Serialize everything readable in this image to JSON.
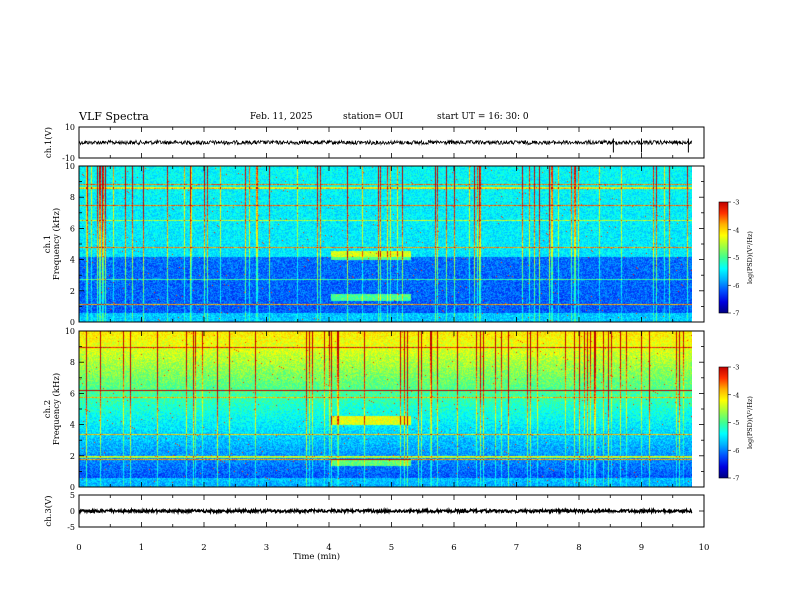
{
  "header": {
    "title": "VLF Spectra",
    "date": "Feb. 11, 2025",
    "station": "station= OUI",
    "start": "start  UT  =   16: 30: 0"
  },
  "colors": {
    "scale": [
      "#000080",
      "#0000e0",
      "#0050ff",
      "#00b0ff",
      "#00ffff",
      "#40ff90",
      "#a0ff40",
      "#ffff00",
      "#ffb000",
      "#ff3000",
      "#c00000"
    ]
  },
  "chart_data": [
    {
      "type": "line",
      "name": "ch1-waveform",
      "ylabel": "ch.1(V)",
      "ylim": [
        -10,
        10
      ],
      "y_ticks": [
        "10",
        "-10"
      ],
      "mean_level": 0
    },
    {
      "type": "heatmap",
      "name": "ch1-spectrogram",
      "ylabel": "ch.1\nFrequency (kHz)",
      "ylim": [
        0,
        10
      ],
      "y_ticks": [
        "0",
        "2",
        "4",
        "6",
        "8",
        "10"
      ],
      "colorbar": {
        "label": "log(PSD)(V²/Hz)",
        "range": [
          -7,
          -3
        ],
        "ticks": [
          "-3",
          "-4",
          "-5",
          "-6",
          "-7"
        ]
      }
    },
    {
      "type": "heatmap",
      "name": "ch2-spectrogram",
      "ylabel": "ch.2\nFrequency (kHz)",
      "ylim": [
        0,
        10
      ],
      "y_ticks": [
        "0",
        "2",
        "4",
        "6",
        "8",
        "10"
      ],
      "colorbar": {
        "label": "log(PSD)(V²/Hz)",
        "range": [
          -7,
          -3
        ],
        "ticks": [
          "-3",
          "-4",
          "-5",
          "-6",
          "-7"
        ]
      }
    },
    {
      "type": "line",
      "name": "ch3-waveform",
      "ylabel": "ch.3(V)",
      "ylim": [
        -5,
        5
      ],
      "y_ticks": [
        "5",
        "0",
        "-5"
      ],
      "mean_level": 0
    }
  ],
  "x_axis": {
    "label": "Time (min)",
    "xlim": [
      0,
      10
    ],
    "ticks": [
      "0",
      "1",
      "2",
      "3",
      "4",
      "5",
      "6",
      "7",
      "8",
      "9",
      "10"
    ]
  }
}
